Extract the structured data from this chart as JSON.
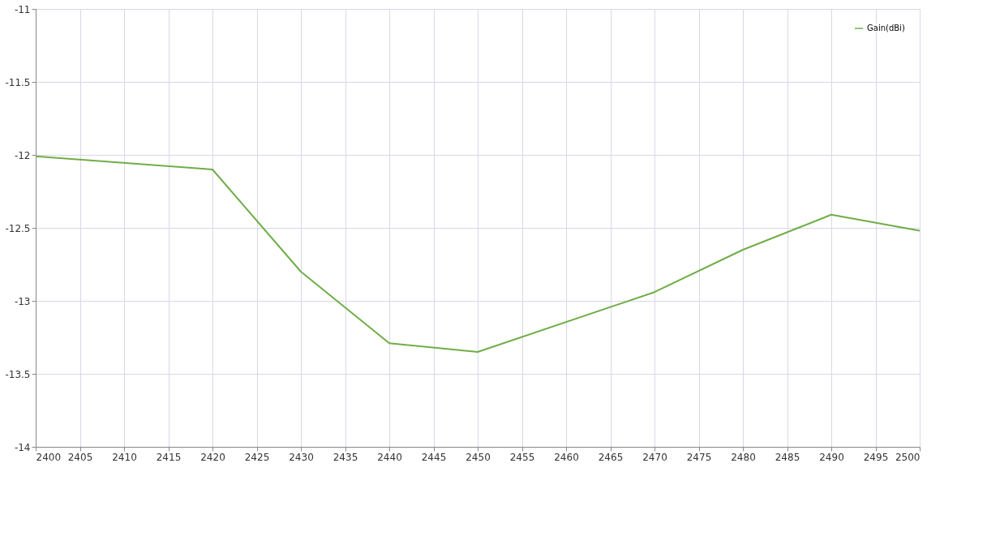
{
  "chart_data": {
    "type": "line",
    "x": [
      2400,
      2420,
      2430,
      2440,
      2450,
      2470,
      2480,
      2490,
      2500
    ],
    "series": [
      {
        "name": "Gain(dBi)",
        "color": "#70ad47",
        "values": [
          -12.01,
          -12.1,
          -12.8,
          -13.29,
          -13.35,
          -12.94,
          -12.65,
          -12.41,
          -12.52
        ]
      }
    ],
    "xlim": [
      2400,
      2500
    ],
    "xticks": [
      2400,
      2405,
      2410,
      2415,
      2420,
      2425,
      2430,
      2435,
      2440,
      2445,
      2450,
      2455,
      2460,
      2465,
      2470,
      2475,
      2480,
      2485,
      2490,
      2495,
      2500
    ],
    "ylim": [
      -14,
      -11
    ],
    "yticks": [
      -14,
      -13.5,
      -13,
      -12.5,
      -12,
      -11.5,
      -11
    ],
    "grid": true,
    "legend": "top right",
    "marker": "none",
    "line_style": "solid"
  }
}
